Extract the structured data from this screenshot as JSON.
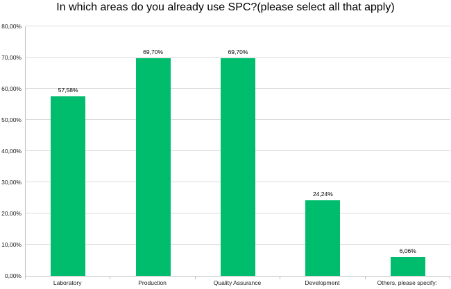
{
  "chart_data": {
    "type": "bar",
    "title": "In which areas do you already use SPC?(please select all that apply)",
    "categories": [
      "Laboratory",
      "Production",
      "Quality Assurance",
      "Development",
      "Others, please specify:"
    ],
    "values": [
      57.58,
      69.7,
      69.7,
      24.24,
      6.06
    ],
    "data_labels": [
      "57,58%",
      "69,70%",
      "69,70%",
      "24,24%",
      "6,06%"
    ],
    "xlabel": "",
    "ylabel": "",
    "ylim": [
      0,
      80
    ],
    "ytick_step": 10,
    "ytick_labels": [
      "0,00%",
      "10,00%",
      "20,00%",
      "30,00%",
      "40,00%",
      "50,00%",
      "60,00%",
      "70,00%",
      "80,00%"
    ],
    "grid": "horizontal",
    "legend": "none",
    "colors": {
      "bar": "#00bd6e",
      "gridline": "#d9d9d9",
      "axis": "#bfbfbf",
      "label_text": "#1a1a1a",
      "title_text": "#000000"
    }
  }
}
